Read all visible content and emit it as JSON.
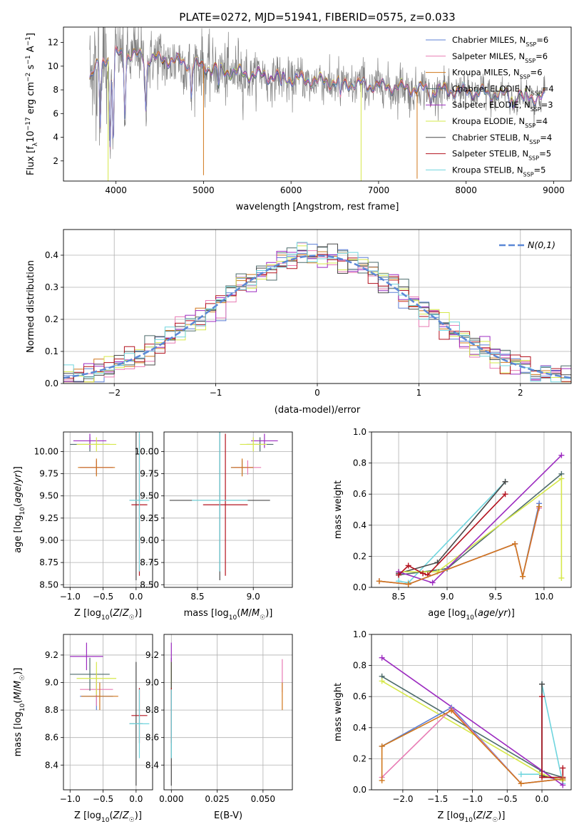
{
  "figure": {
    "title": "PLATE=0272, MJD=51941, FIBERID=0575, z=0.033"
  },
  "palette": [
    "#5b7fd6",
    "#e87bb4",
    "#d0771c",
    "#4d6b6b",
    "#9c2bc0",
    "#d6e84a",
    "#4a4a4a",
    "#b3121e",
    "#6fd5de"
  ],
  "chart_data": [
    {
      "id": "spectrum",
      "type": "line",
      "xlabel": "wavelength [Angstrom, rest frame]",
      "ylabel": "Flux [f_λ 10^-17 erg cm^-2 s^-1 A^-1]",
      "xlim": [
        3400,
        9200
      ],
      "ylim": [
        0.3,
        13.3
      ],
      "xticks": [
        4000,
        5000,
        6000,
        7000,
        8000,
        9000
      ],
      "yticks": [
        2,
        4,
        6,
        8,
        10,
        12
      ],
      "grid": false,
      "legend_position": "top-right",
      "legend": [
        {
          "name": "Chabrier MILES",
          "nssp": "6"
        },
        {
          "name": "Salpeter MILES",
          "nssp": "6"
        },
        {
          "name": "Kroupa MILES",
          "nssp": "6"
        },
        {
          "name": "Chabrier ELODIE",
          "nssp": "4"
        },
        {
          "name": "Salpeter ELODIE",
          "nssp": "3"
        },
        {
          "name": "Kroupa ELODIE",
          "nssp": "4"
        },
        {
          "name": "Chabrier STELIB",
          "nssp": "4"
        },
        {
          "name": "Salpeter STELIB",
          "nssp": "5"
        },
        {
          "name": "Kroupa STELIB",
          "nssp": "5"
        }
      ],
      "data_color": "#808080",
      "continuum": [
        [
          3700,
          9.0
        ],
        [
          3800,
          10.0
        ],
        [
          3900,
          10.8
        ],
        [
          4000,
          11.0
        ],
        [
          4200,
          10.9
        ],
        [
          4400,
          10.6
        ],
        [
          4600,
          10.5
        ],
        [
          4800,
          10.2
        ],
        [
          5000,
          9.9
        ],
        [
          5200,
          9.6
        ],
        [
          5500,
          9.3
        ],
        [
          6000,
          8.9
        ],
        [
          6500,
          8.6
        ],
        [
          7000,
          8.3
        ],
        [
          7500,
          8.0
        ],
        [
          8000,
          7.8
        ],
        [
          8500,
          7.5
        ],
        [
          8900,
          7.3
        ]
      ],
      "dips": [
        [
          3820,
          4.8
        ],
        [
          3933,
          3.0
        ],
        [
          3968,
          3.2
        ],
        [
          4102,
          6.0
        ],
        [
          4340,
          6.4
        ],
        [
          4861,
          7.5
        ],
        [
          5175,
          8.0
        ],
        [
          5890,
          8.2
        ],
        [
          6563,
          7.0
        ],
        [
          7600,
          7.0
        ],
        [
          8500,
          7.0
        ],
        [
          8542,
          6.6
        ],
        [
          8662,
          6.8
        ]
      ],
      "spikes": [
        [
          5000,
          0.8
        ],
        [
          7440,
          0.5
        ],
        [
          6800,
          0.3
        ],
        [
          3910,
          0.3
        ]
      ]
    },
    {
      "id": "residuals",
      "type": "step",
      "xlabel": "(data-model)/error",
      "ylabel": "Normed distribution",
      "xlim": [
        -2.5,
        2.5
      ],
      "ylim": [
        0,
        0.48
      ],
      "xticks": [
        -2,
        -1,
        0,
        1,
        2
      ],
      "yticks": [
        0.0,
        0.1,
        0.2,
        0.3,
        0.4
      ],
      "grid": true,
      "legend_position": "top-right",
      "legend": [
        {
          "name": "N(0,1)",
          "color": "#5b88d6"
        }
      ],
      "bins": {
        "start": -2.5,
        "width": 0.1,
        "count": 50
      },
      "reference": {
        "mean": 0,
        "sigma": 1
      }
    },
    {
      "id": "age-vs-Z",
      "type": "scatter",
      "xlabel": "Z [log10(Z/Z☉)]",
      "ylabel": "age [log10(age/yr)]",
      "xlim": [
        -1.1,
        0.25
      ],
      "ylim": [
        8.47,
        10.22
      ],
      "xticks": [
        -1.0,
        -0.5,
        0.0
      ],
      "yticks": [
        8.5,
        8.75,
        9.0,
        9.25,
        9.5,
        9.75,
        10.0
      ],
      "grid": true,
      "points": [
        {
          "series": 0,
          "x": -0.6,
          "y": 9.82,
          "xerr": 0.25,
          "yerr": 0.08
        },
        {
          "series": 1,
          "x": -0.6,
          "y": 9.82,
          "xerr": 0.25,
          "yerr": 0.08
        },
        {
          "series": 2,
          "x": -0.6,
          "y": 9.82,
          "xerr": 0.28,
          "yerr": 0.1
        },
        {
          "series": 3,
          "x": -0.7,
          "y": 10.08,
          "xerr": 0.3,
          "yerr": 0.08
        },
        {
          "series": 4,
          "x": -0.7,
          "y": 10.12,
          "xerr": 0.25,
          "yerr": 0.08
        },
        {
          "series": 5,
          "x": -0.6,
          "y": 10.08,
          "xerr": 0.3,
          "yerr": 0.08
        },
        {
          "series": 6,
          "x": 0.0,
          "y": 9.45,
          "xerr": 0.1,
          "yerr": 0.9
        },
        {
          "series": 7,
          "x": 0.05,
          "y": 9.4,
          "xerr": 0.12,
          "yerr": 0.8
        },
        {
          "series": 8,
          "x": 0.05,
          "y": 9.45,
          "xerr": 0.15,
          "yerr": 0.8
        }
      ]
    },
    {
      "id": "age-vs-mass",
      "type": "scatter",
      "xlabel": "mass [log10(M/M☉)]",
      "ylabel": "",
      "xlim": [
        8.2,
        9.35
      ],
      "ylim": [
        8.47,
        10.22
      ],
      "xticks": [
        8.5,
        9.0
      ],
      "yticks": [
        8.5,
        8.75,
        9.0,
        9.25,
        9.5,
        9.75,
        10.0
      ],
      "grid": true,
      "points": [
        {
          "series": 0,
          "x": 8.9,
          "y": 9.82,
          "xerr": 0.1,
          "yerr": 0.08
        },
        {
          "series": 1,
          "x": 8.95,
          "y": 9.82,
          "xerr": 0.12,
          "yerr": 0.08
        },
        {
          "series": 2,
          "x": 8.9,
          "y": 9.82,
          "xerr": 0.1,
          "yerr": 0.1
        },
        {
          "series": 3,
          "x": 9.06,
          "y": 10.08,
          "xerr": 0.12,
          "yerr": 0.08
        },
        {
          "series": 4,
          "x": 9.1,
          "y": 10.12,
          "xerr": 0.12,
          "yerr": 0.08
        },
        {
          "series": 5,
          "x": 9.0,
          "y": 10.08,
          "xerr": 0.12,
          "yerr": 0.08
        },
        {
          "series": 6,
          "x": 8.7,
          "y": 9.45,
          "xerr": 0.45,
          "yerr": 0.9
        },
        {
          "series": 7,
          "x": 8.75,
          "y": 9.4,
          "xerr": 0.2,
          "yerr": 0.8
        },
        {
          "series": 8,
          "x": 8.7,
          "y": 9.45,
          "xerr": 0.25,
          "yerr": 0.8
        }
      ]
    },
    {
      "id": "massweight-vs-age",
      "type": "line",
      "xlabel": "age [log10(age/yr)]",
      "ylabel": "mass weight",
      "xlim": [
        8.22,
        10.28
      ],
      "ylim": [
        0,
        1.0
      ],
      "xticks": [
        8.5,
        9.0,
        9.5,
        10.0
      ],
      "yticks": [
        0.0,
        0.2,
        0.4,
        0.6,
        0.8,
        1.0
      ],
      "grid": true,
      "series": [
        {
          "series": 0,
          "x": [
            8.3,
            8.6,
            9.7,
            9.78,
            9.95
          ],
          "y": [
            0.04,
            0.02,
            0.28,
            0.07,
            0.54
          ]
        },
        {
          "series": 1,
          "x": [
            8.3,
            8.6,
            9.7,
            9.78,
            9.95
          ],
          "y": [
            0.04,
            0.02,
            0.28,
            0.07,
            0.51
          ]
        },
        {
          "series": 2,
          "x": [
            8.3,
            8.6,
            9.7,
            9.78,
            9.95
          ],
          "y": [
            0.04,
            0.02,
            0.28,
            0.07,
            0.52
          ]
        },
        {
          "series": 3,
          "x": [
            8.5,
            9.0,
            10.18
          ],
          "y": [
            0.08,
            0.12,
            0.73
          ]
        },
        {
          "series": 4,
          "x": [
            8.5,
            8.85,
            10.18
          ],
          "y": [
            0.1,
            0.03,
            0.85
          ]
        },
        {
          "series": 5,
          "x": [
            8.5,
            8.9,
            10.18,
            10.18
          ],
          "y": [
            0.1,
            0.1,
            0.7,
            0.06
          ]
        },
        {
          "series": 6,
          "x": [
            8.5,
            8.9,
            9.6
          ],
          "y": [
            0.09,
            0.16,
            0.68
          ]
        },
        {
          "series": 7,
          "x": [
            8.5,
            8.6,
            8.75,
            8.8,
            9.6
          ],
          "y": [
            0.08,
            0.14,
            0.09,
            0.08,
            0.6
          ]
        },
        {
          "series": 8,
          "x": [
            8.5,
            8.6,
            9.6
          ],
          "y": [
            0.04,
            0.03,
            0.68
          ]
        }
      ]
    },
    {
      "id": "mass-vs-Z",
      "type": "scatter",
      "xlabel": "Z [log10(Z/Z☉)]",
      "ylabel": "mass [log10(M/M☉)]",
      "xlim": [
        -1.1,
        0.25
      ],
      "ylim": [
        8.22,
        9.35
      ],
      "xticks": [
        -1.0,
        -0.5,
        0.0
      ],
      "yticks": [
        8.4,
        8.6,
        8.8,
        9.0,
        9.2
      ],
      "grid": true,
      "points": [
        {
          "series": 0,
          "x": -0.6,
          "y": 8.9,
          "xerr": 0.25,
          "yerr": 0.1
        },
        {
          "series": 1,
          "x": -0.6,
          "y": 8.95,
          "xerr": 0.25,
          "yerr": 0.12
        },
        {
          "series": 2,
          "x": -0.55,
          "y": 8.9,
          "xerr": 0.28,
          "yerr": 0.1
        },
        {
          "series": 3,
          "x": -0.7,
          "y": 9.06,
          "xerr": 0.3,
          "yerr": 0.12
        },
        {
          "series": 4,
          "x": -0.75,
          "y": 9.19,
          "xerr": 0.25,
          "yerr": 0.1
        },
        {
          "series": 5,
          "x": -0.6,
          "y": 9.03,
          "xerr": 0.3,
          "yerr": 0.12
        },
        {
          "series": 6,
          "x": 0.0,
          "y": 8.7,
          "xerr": 0.1,
          "yerr": 0.45
        },
        {
          "series": 7,
          "x": 0.05,
          "y": 8.76,
          "xerr": 0.12,
          "yerr": 0.2
        },
        {
          "series": 8,
          "x": 0.05,
          "y": 8.7,
          "xerr": 0.15,
          "yerr": 0.25
        }
      ]
    },
    {
      "id": "mass-vs-ebv",
      "type": "scatter",
      "xlabel": "E(B-V)",
      "ylabel": "",
      "xlim": [
        -0.004,
        0.066
      ],
      "ylim": [
        8.22,
        9.35
      ],
      "xticks": [
        0.0,
        0.025,
        0.05
      ],
      "yticks": [
        8.4,
        8.6,
        8.8,
        9.0,
        9.2
      ],
      "grid": true,
      "points": [
        {
          "series": 0,
          "x": 0.0,
          "y": 8.9,
          "xerr": 0,
          "yerr": 0.1
        },
        {
          "series": 1,
          "x": 0.0605,
          "y": 9.05,
          "xerr": 0,
          "yerr": 0.12
        },
        {
          "series": 2,
          "x": 0.0605,
          "y": 8.9,
          "xerr": 0,
          "yerr": 0.1
        },
        {
          "series": 3,
          "x": 0.0,
          "y": 9.06,
          "xerr": 0,
          "yerr": 0.12
        },
        {
          "series": 4,
          "x": 0.0,
          "y": 9.19,
          "xerr": 0,
          "yerr": 0.1
        },
        {
          "series": 5,
          "x": 0.0,
          "y": 9.03,
          "xerr": 0,
          "yerr": 0.12
        },
        {
          "series": 6,
          "x": 0.0,
          "y": 8.7,
          "xerr": 0,
          "yerr": 0.45
        },
        {
          "series": 7,
          "x": 0.0,
          "y": 8.76,
          "xerr": 0,
          "yerr": 0.2
        },
        {
          "series": 8,
          "x": 0.0,
          "y": 8.7,
          "xerr": 0,
          "yerr": 0.25
        }
      ]
    },
    {
      "id": "massweight-vs-Z",
      "type": "line",
      "xlabel": "Z [log10(Z/Z☉)]",
      "ylabel": "mass weight",
      "xlim": [
        -2.45,
        0.42
      ],
      "ylim": [
        0,
        1.0
      ],
      "xticks": [
        -2.0,
        -1.5,
        -1.0,
        -0.5,
        0.0
      ],
      "yticks": [
        0.0,
        0.2,
        0.4,
        0.6,
        0.8,
        1.0
      ],
      "grid": true,
      "series": [
        {
          "series": 0,
          "x": [
            -2.3,
            -1.3,
            -0.3,
            0.3
          ],
          "y": [
            0.28,
            0.53,
            0.04,
            0.07
          ]
        },
        {
          "series": 1,
          "x": [
            -2.3,
            -1.3,
            -0.3,
            0.3
          ],
          "y": [
            0.08,
            0.52,
            0.04,
            0.07
          ]
        },
        {
          "series": 2,
          "x": [
            -2.3,
            -2.3,
            -1.3,
            -0.3,
            0.3
          ],
          "y": [
            0.06,
            0.28,
            0.51,
            0.04,
            0.07
          ]
        },
        {
          "series": 3,
          "x": [
            -2.3,
            0.0,
            0.3
          ],
          "y": [
            0.73,
            0.12,
            0.08
          ]
        },
        {
          "series": 4,
          "x": [
            -2.3,
            0.3
          ],
          "y": [
            0.85,
            0.03
          ]
        },
        {
          "series": 5,
          "x": [
            -2.3,
            0.0,
            0.3
          ],
          "y": [
            0.7,
            0.1,
            0.06
          ]
        },
        {
          "series": 6,
          "x": [
            0.0,
            0.0,
            0.3
          ],
          "y": [
            0.68,
            0.09,
            0.06
          ]
        },
        {
          "series": 7,
          "x": [
            0.0,
            0.0,
            0.3,
            0.3
          ],
          "y": [
            0.6,
            0.08,
            0.08,
            0.14
          ]
        },
        {
          "series": 8,
          "x": [
            -0.3,
            0.0,
            0.0,
            0.3
          ],
          "y": [
            0.1,
            0.1,
            0.68,
            0.04
          ]
        }
      ]
    }
  ]
}
